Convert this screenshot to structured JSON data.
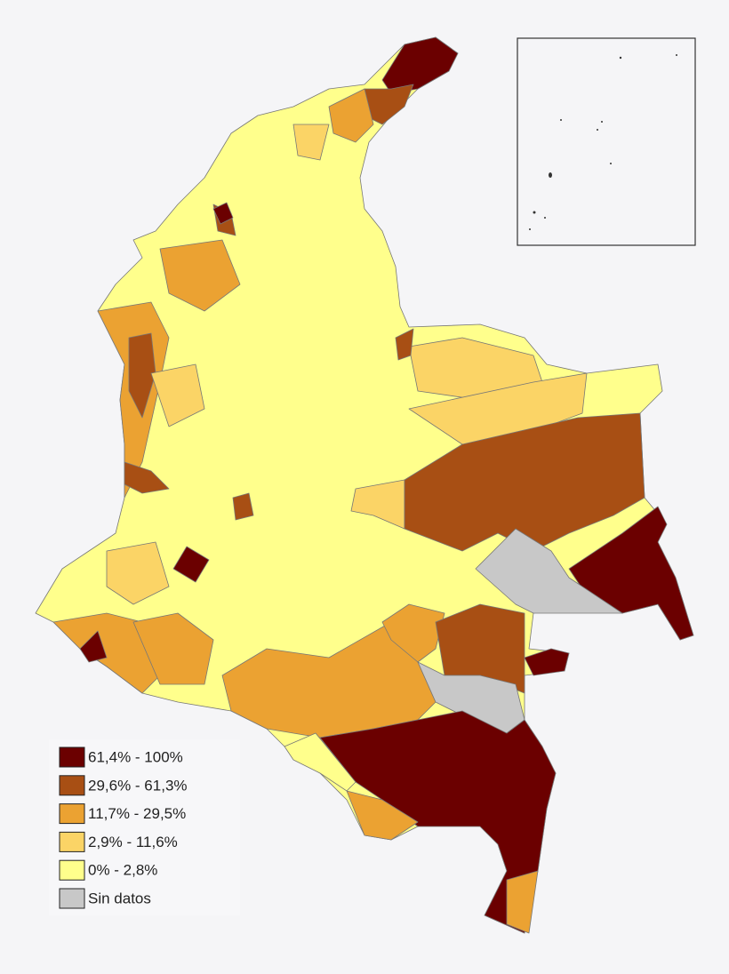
{
  "legend": {
    "items": [
      {
        "label": "61,4% - 100%",
        "color": "#6b0000"
      },
      {
        "label": "29,6% - 61,3%",
        "color": "#a84f14"
      },
      {
        "label": "11,7% - 29,5%",
        "color": "#eba232"
      },
      {
        "label": "2,9% - 11,6%",
        "color": "#fbd466"
      },
      {
        "label": "0% - 2,8%",
        "color": "#ffff8c"
      },
      {
        "label": "Sin datos",
        "color": "#c8c8c8"
      }
    ]
  }
}
